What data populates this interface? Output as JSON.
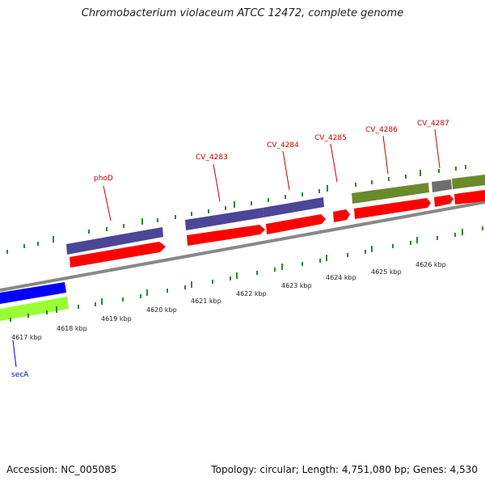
{
  "title": "Chromobacterium violaceum ATCC 12472, complete genome",
  "footer": {
    "accession": "Accession: NC_005085",
    "summary": "Topology: circular; Length: 4,751,080 bp; Genes: 4,530"
  },
  "colors": {
    "cds_red": "#ff0000",
    "gene_label_red": "#cc0000",
    "purple_feature": "#4b4697",
    "olive_feature": "#6b8a2a",
    "gray_feature": "#6e6e6e",
    "blue_feature": "#0000ff",
    "lime_feature": "#99ff33",
    "sec_label_blue": "#0000cc",
    "backbone": "#888888",
    "tick_green": "#2a8a2a"
  },
  "scale": {
    "tick_labels": [
      "4617 kbp",
      "4618 kbp",
      "4619 kbp",
      "4620 kbp",
      "4621 kbp",
      "4622 kbp",
      "4623 kbp",
      "4624 kbp",
      "4625 kbp",
      "4626 kbp"
    ]
  },
  "genes": [
    {
      "label": "phoD",
      "color": "red"
    },
    {
      "label": "CV_4283",
      "color": "red"
    },
    {
      "label": "CV_4284",
      "color": "red"
    },
    {
      "label": "CV_4285",
      "color": "red"
    },
    {
      "label": "CV_4286",
      "color": "red"
    },
    {
      "label": "CV_4287",
      "color": "red"
    },
    {
      "label": "secA",
      "color": "blue"
    }
  ]
}
